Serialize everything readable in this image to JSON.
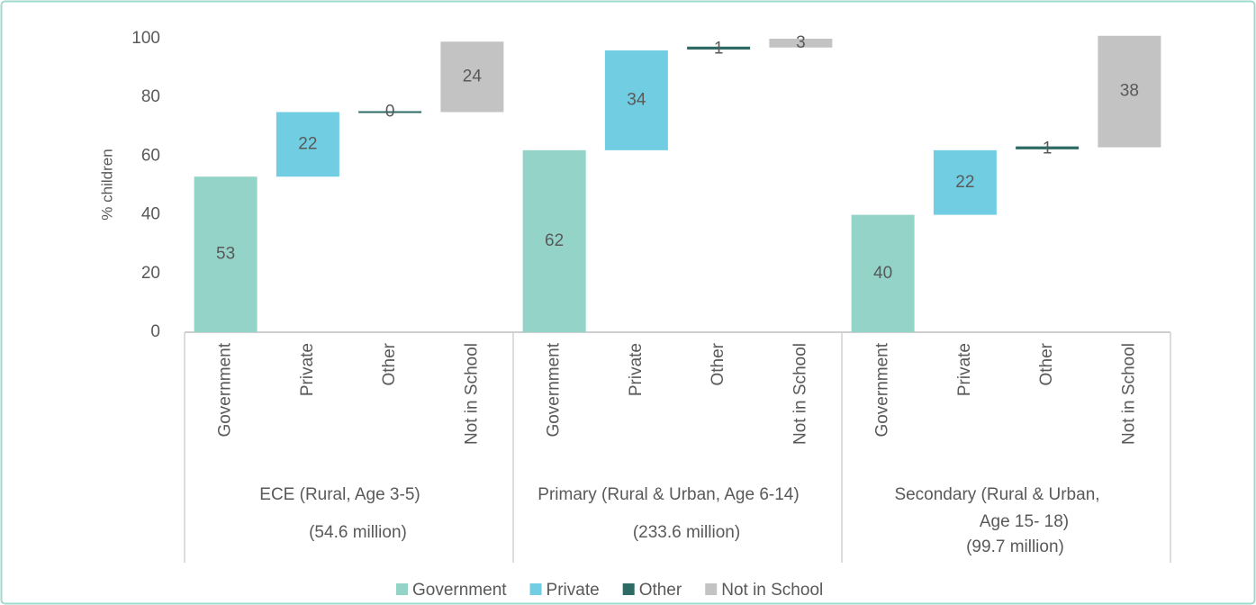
{
  "chart_data": {
    "type": "waterfall",
    "ylabel": "% children",
    "groups": [
      [
        "ECE (Rural, Age 3-5)",
        "(54.6 million)"
      ],
      [
        "Primary (Rural & Urban, Age 6-14)",
        "(233.6 million)"
      ],
      [
        "Secondary (Rural & Urban,",
        "Age 15- 18)",
        "(99.7 million)"
      ]
    ],
    "series": [
      {
        "name": "Government",
        "color": "#93d3c8",
        "values": [
          53,
          62,
          40
        ]
      },
      {
        "name": "Private",
        "color": "#70cde2",
        "values": [
          22,
          34,
          22
        ]
      },
      {
        "name": "Other",
        "color": "#2e6b64",
        "values": [
          0,
          1,
          1
        ]
      },
      {
        "name": "Not in School",
        "color": "#c3c3c3",
        "values": [
          24,
          3,
          38
        ]
      }
    ],
    "ylim": [
      0,
      103
    ],
    "yticks": [
      0,
      20,
      40,
      60,
      80,
      100
    ],
    "legend": "bottom"
  }
}
